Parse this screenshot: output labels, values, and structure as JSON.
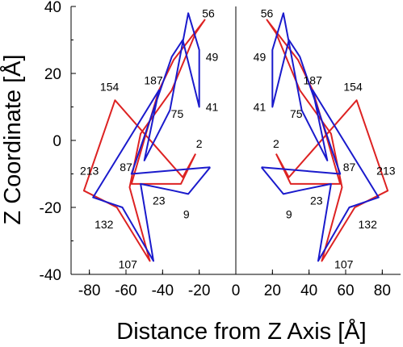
{
  "chart_data": {
    "type": "line",
    "title": "",
    "xlabel": "Distance from Z Axis [Å]",
    "ylabel": "Z Coordinate [Å]",
    "xlim": [
      -90,
      90
    ],
    "ylim": [
      -40,
      40
    ],
    "xticks": [
      -80,
      -60,
      -40,
      -20,
      0,
      20,
      40,
      60,
      80
    ],
    "yticks": [
      -40,
      -20,
      0,
      20,
      40
    ],
    "grid": false,
    "legend": "none",
    "colors": {
      "red": "#dd2222",
      "blue": "#1a1acc"
    },
    "series": [
      {
        "color": "#dd2222",
        "x": [
          -22,
          -29,
          -66,
          -83,
          -65,
          -47,
          -58,
          -52,
          -35,
          -22,
          -17,
          -34,
          -42,
          -48,
          -57,
          -30,
          -22
        ],
        "y": [
          -4,
          -11,
          12,
          -15,
          -20,
          -36,
          -14,
          2,
          15,
          32,
          36,
          24,
          15,
          4,
          -13,
          -13,
          -4
        ]
      },
      {
        "color": "#1a1acc",
        "x": [
          -14,
          -26,
          -34,
          -52,
          -45,
          -62,
          -78,
          -42,
          -50,
          -36,
          -26,
          -20,
          -20,
          -29,
          -35,
          -57,
          -14
        ],
        "y": [
          -8,
          -16,
          -15,
          -13,
          -36,
          -20,
          -17,
          15,
          -6,
          9,
          38,
          27,
          10,
          30,
          25,
          -10,
          -8
        ]
      },
      {
        "color": "#dd2222",
        "x": [
          22,
          29,
          66,
          83,
          65,
          47,
          58,
          52,
          35,
          22,
          17,
          34,
          42,
          48,
          57,
          30,
          22
        ],
        "y": [
          -4,
          -11,
          12,
          -15,
          -20,
          -36,
          -14,
          2,
          15,
          32,
          36,
          24,
          15,
          4,
          -13,
          -13,
          -4
        ]
      },
      {
        "color": "#1a1acc",
        "x": [
          14,
          26,
          34,
          52,
          45,
          62,
          78,
          42,
          50,
          36,
          26,
          20,
          20,
          29,
          35,
          57,
          14
        ],
        "y": [
          -8,
          -16,
          -15,
          -13,
          -36,
          -20,
          -17,
          15,
          -6,
          9,
          38,
          27,
          10,
          30,
          25,
          -10,
          -8
        ]
      }
    ],
    "annotations": [
      {
        "text": "56",
        "x": -15,
        "y": 38
      },
      {
        "text": "49",
        "x": -13,
        "y": 25
      },
      {
        "text": "41",
        "x": -13,
        "y": 10
      },
      {
        "text": "187",
        "x": -45,
        "y": 18
      },
      {
        "text": "154",
        "x": -69,
        "y": 16
      },
      {
        "text": "75",
        "x": -32,
        "y": 8
      },
      {
        "text": "2",
        "x": -20,
        "y": -1
      },
      {
        "text": "87",
        "x": -60,
        "y": -8
      },
      {
        "text": "213",
        "x": -80,
        "y": -9
      },
      {
        "text": "23",
        "x": -42,
        "y": -18
      },
      {
        "text": "9",
        "x": -27,
        "y": -22
      },
      {
        "text": "132",
        "x": -72,
        "y": -25
      },
      {
        "text": "107",
        "x": -59,
        "y": -37
      },
      {
        "text": "56",
        "x": 17,
        "y": 38
      },
      {
        "text": "49",
        "x": 13,
        "y": 25
      },
      {
        "text": "187",
        "x": 42,
        "y": 18
      },
      {
        "text": "154",
        "x": 64,
        "y": 16
      },
      {
        "text": "41",
        "x": 13,
        "y": 10
      },
      {
        "text": "75",
        "x": 33,
        "y": 8
      },
      {
        "text": "2",
        "x": 22,
        "y": -1
      },
      {
        "text": "87",
        "x": 62,
        "y": -8
      },
      {
        "text": "213",
        "x": 82,
        "y": -9
      },
      {
        "text": "23",
        "x": 44,
        "y": -18
      },
      {
        "text": "9",
        "x": 29,
        "y": -22
      },
      {
        "text": "132",
        "x": 72,
        "y": -25
      },
      {
        "text": "107",
        "x": 59,
        "y": -37
      }
    ]
  }
}
